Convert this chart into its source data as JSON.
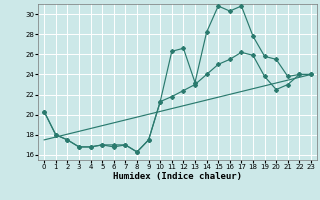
{
  "title": "",
  "xlabel": "Humidex (Indice chaleur)",
  "ylabel": "",
  "background_color": "#cce8e8",
  "grid_color": "#ffffff",
  "line_color": "#2a7a6e",
  "xlim": [
    -0.5,
    23.5
  ],
  "ylim": [
    15.5,
    31.0
  ],
  "yticks": [
    16,
    18,
    20,
    22,
    24,
    26,
    28,
    30
  ],
  "xticks": [
    0,
    1,
    2,
    3,
    4,
    5,
    6,
    7,
    8,
    9,
    10,
    11,
    12,
    13,
    14,
    15,
    16,
    17,
    18,
    19,
    20,
    21,
    22,
    23
  ],
  "series1_x": [
    0,
    1,
    2,
    3,
    4,
    5,
    6,
    7,
    8,
    9,
    10,
    11,
    12,
    13,
    14,
    15,
    16,
    17,
    18,
    19,
    20,
    21,
    22,
    23
  ],
  "series1_y": [
    20.3,
    18.0,
    17.5,
    16.8,
    16.8,
    17.0,
    17.0,
    17.0,
    16.3,
    17.5,
    21.3,
    26.3,
    26.6,
    23.2,
    28.2,
    30.8,
    30.3,
    30.8,
    27.8,
    25.8,
    25.5,
    23.8,
    24.0,
    24.0
  ],
  "series2_x": [
    0,
    1,
    2,
    3,
    4,
    5,
    6,
    7,
    8,
    9,
    10,
    11,
    12,
    13,
    14,
    15,
    16,
    17,
    18,
    19,
    20,
    21,
    22,
    23
  ],
  "series2_y": [
    20.3,
    18.0,
    17.5,
    16.8,
    16.8,
    17.0,
    16.8,
    17.0,
    16.3,
    17.5,
    21.3,
    21.8,
    22.4,
    23.0,
    24.0,
    25.0,
    25.5,
    26.2,
    25.9,
    23.8,
    22.5,
    23.0,
    24.0,
    24.0
  ],
  "series3_x": [
    0,
    23
  ],
  "series3_y": [
    17.5,
    24.0
  ]
}
